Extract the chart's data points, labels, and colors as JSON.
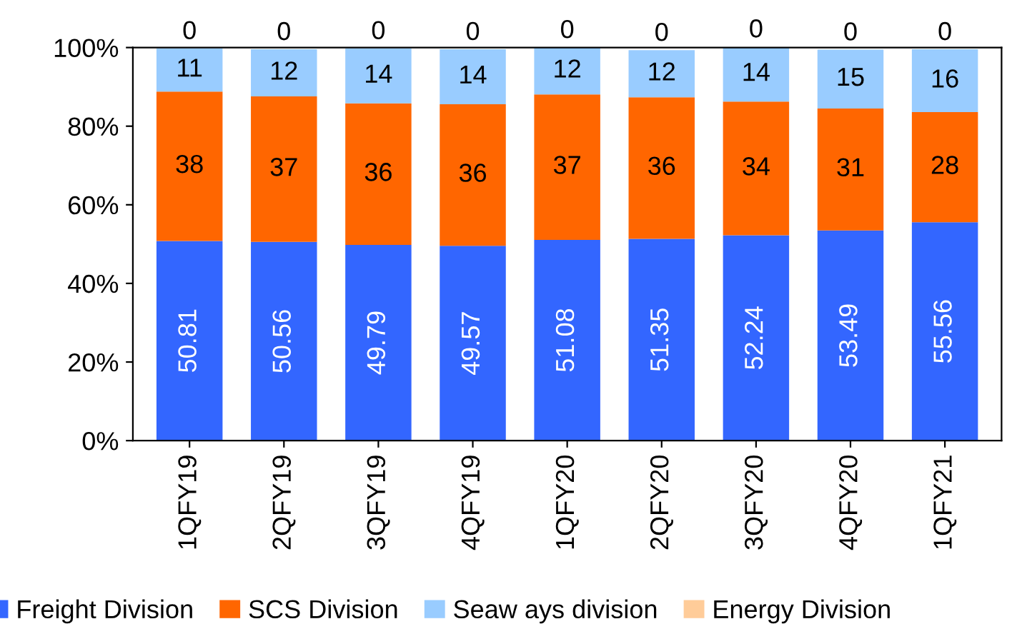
{
  "chart_data": {
    "type": "bar",
    "stacked": true,
    "categories": [
      "1QFY19",
      "2QFY19",
      "3QFY19",
      "4QFY19",
      "1QFY20",
      "2QFY20",
      "3QFY20",
      "4QFY20",
      "1QFY21"
    ],
    "series": [
      {
        "name": "Freight Division",
        "color": "#3366ff",
        "values": [
          50.81,
          50.56,
          49.79,
          49.57,
          51.08,
          51.35,
          52.24,
          53.49,
          55.56
        ]
      },
      {
        "name": "SCS Division",
        "color": "#ff6600",
        "values": [
          38,
          37,
          36,
          36,
          37,
          36,
          34,
          31,
          28
        ]
      },
      {
        "name": "Seaw ays division",
        "color": "#99ccff",
        "values": [
          11,
          12,
          14,
          14,
          12,
          12,
          14,
          15,
          16
        ]
      },
      {
        "name": "Energy Division",
        "color": "#ffcc99",
        "values": [
          0,
          0,
          0,
          0,
          0,
          0,
          0,
          0,
          0
        ]
      }
    ],
    "ylim": [
      0,
      100
    ],
    "yticks": [
      {
        "value": 0,
        "label": "0%"
      },
      {
        "value": 20,
        "label": "20%"
      },
      {
        "value": 40,
        "label": "40%"
      },
      {
        "value": 60,
        "label": "60%"
      },
      {
        "value": 80,
        "label": "80%"
      },
      {
        "value": 100,
        "label": "100%"
      }
    ],
    "data_labels": true,
    "legend": "bottom",
    "grid": false
  }
}
